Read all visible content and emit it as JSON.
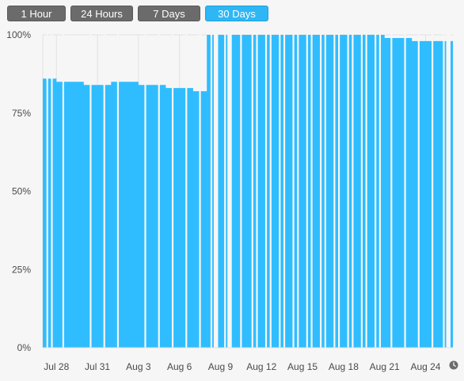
{
  "range_buttons": [
    {
      "label": "1 Hour",
      "active": false
    },
    {
      "label": "24 Hours",
      "active": false
    },
    {
      "label": "7 Days",
      "active": false
    },
    {
      "label": "30 Days",
      "active": true
    }
  ],
  "colors": {
    "area": "#2fbdff",
    "grid": "#e2e2e2",
    "button_active": "#2eb6f5",
    "button_inactive": "#6b6b6b"
  },
  "icons": {
    "corner": "clock-icon"
  },
  "chart_data": {
    "type": "area",
    "title": "",
    "xlabel": "",
    "ylabel": "",
    "x_range": [
      "Jul 27",
      "Aug 26"
    ],
    "ylim": [
      0,
      100
    ],
    "x_tick_labels": [
      "Jul 28",
      "Jul 31",
      "Aug 3",
      "Aug 6",
      "Aug 9",
      "Aug 12",
      "Aug 15",
      "Aug 18",
      "Aug 21",
      "Aug 24"
    ],
    "y_tick_labels": [
      "100%",
      "75%",
      "50%",
      "25%",
      "0%"
    ],
    "y_ticks": [
      100,
      75,
      50,
      25,
      0
    ],
    "grid": true,
    "series": [
      {
        "values": [
          {
            "date": "Jul 27",
            "pct": 86
          },
          {
            "date": "Jul 28",
            "pct": 86
          },
          {
            "date": "Jul 28",
            "pct": 85
          },
          {
            "date": "Jul 30",
            "pct": 85
          },
          {
            "date": "Jul 30",
            "pct": 84
          },
          {
            "date": "Aug 1",
            "pct": 84
          },
          {
            "date": "Aug 1",
            "pct": 86
          },
          {
            "date": "Aug 1",
            "pct": 85
          },
          {
            "date": "Aug 3",
            "pct": 85
          },
          {
            "date": "Aug 3",
            "pct": 84
          },
          {
            "date": "Aug 5",
            "pct": 84
          },
          {
            "date": "Aug 5",
            "pct": 83
          },
          {
            "date": "Aug 7",
            "pct": 83
          },
          {
            "date": "Aug 7",
            "pct": 82
          },
          {
            "date": "Aug 8",
            "pct": 82
          },
          {
            "date": "Aug 8",
            "pct": 100
          },
          {
            "date": "Aug 21",
            "pct": 100
          },
          {
            "date": "Aug 21",
            "pct": 99
          },
          {
            "date": "Aug 23",
            "pct": 99
          },
          {
            "date": "Aug 23",
            "pct": 98
          },
          {
            "date": "Aug 26",
            "pct": 98
          }
        ]
      }
    ],
    "gaps": [
      [
        "Jul 27",
        "Jul 27"
      ],
      [
        "Jul 27",
        "Jul 27"
      ],
      [
        "Jul 28",
        "Jul 28"
      ],
      [
        "Jul 30",
        "Jul 30"
      ],
      [
        "Jul 31",
        "Jul 31"
      ],
      [
        "Aug 1",
        "Aug 1"
      ],
      [
        "Aug 3",
        "Aug 3"
      ],
      [
        "Aug 4",
        "Aug 4"
      ],
      [
        "Aug 5",
        "Aug 5"
      ],
      [
        "Aug 6",
        "Aug 6"
      ],
      [
        "Aug 7",
        "Aug 7"
      ],
      [
        "Aug 8",
        "Aug 8"
      ],
      [
        "Aug 8",
        "Aug 9"
      ],
      [
        "Aug 9",
        "Aug 9"
      ],
      [
        "Aug 9",
        "Aug 10"
      ],
      [
        "Aug 10",
        "Aug 10"
      ],
      [
        "Aug 11",
        "Aug 11"
      ],
      [
        "Aug 11",
        "Aug 11"
      ],
      [
        "Aug 12",
        "Aug 12"
      ],
      [
        "Aug 12",
        "Aug 12"
      ],
      [
        "Aug 13",
        "Aug 13"
      ],
      [
        "Aug 13",
        "Aug 13"
      ],
      [
        "Aug 14",
        "Aug 14"
      ],
      [
        "Aug 14",
        "Aug 14"
      ],
      [
        "Aug 15",
        "Aug 15"
      ],
      [
        "Aug 15",
        "Aug 15"
      ],
      [
        "Aug 16",
        "Aug 16"
      ],
      [
        "Aug 16",
        "Aug 16"
      ],
      [
        "Aug 17",
        "Aug 17"
      ],
      [
        "Aug 17",
        "Aug 17"
      ],
      [
        "Aug 18",
        "Aug 18"
      ],
      [
        "Aug 18",
        "Aug 18"
      ],
      [
        "Aug 19",
        "Aug 19"
      ],
      [
        "Aug 19",
        "Aug 19"
      ],
      [
        "Aug 20",
        "Aug 20"
      ],
      [
        "Aug 20",
        "Aug 20"
      ],
      [
        "Aug 21",
        "Aug 21"
      ],
      [
        "Aug 22",
        "Aug 22"
      ],
      [
        "Aug 23",
        "Aug 23"
      ],
      [
        "Aug 24",
        "Aug 24"
      ],
      [
        "Aug 25",
        "Aug 25"
      ],
      [
        "Aug 25",
        "Aug 26"
      ]
    ]
  }
}
